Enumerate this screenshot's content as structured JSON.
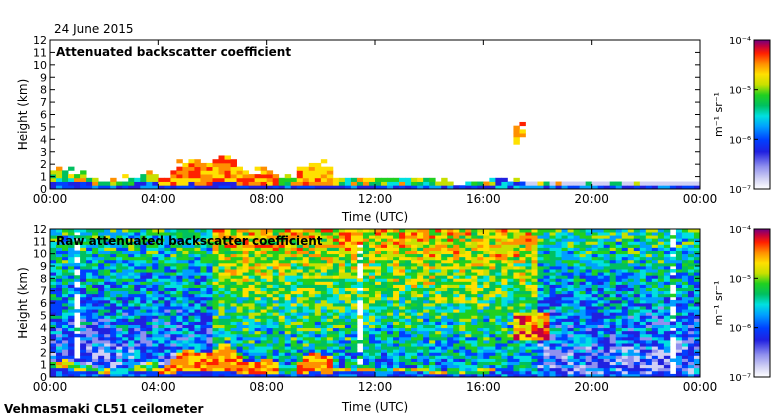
{
  "header": {
    "date": "24 June 2015"
  },
  "footer": {
    "instrument": "Vehmasmaki CL51 ceilometer"
  },
  "colormap": [
    "#ffffff",
    "#d0d0f4",
    "#9090ee",
    "#2020e0",
    "#0040ff",
    "#00a0ff",
    "#00e0e0",
    "#00c060",
    "#20d020",
    "#c8e000",
    "#ffe000",
    "#ff9000",
    "#ff2000",
    "#c00040",
    "#700080"
  ],
  "chart_data": [
    {
      "type": "heatmap",
      "title": "Attenuated backscatter coefficient",
      "xlabel": "Time (UTC)",
      "ylabel": "Height (km)",
      "x_ticks": [
        "00:00",
        "04:00",
        "08:00",
        "12:00",
        "16:00",
        "20:00",
        "00:00"
      ],
      "y_ticks": [
        "0",
        "1",
        "2",
        "3",
        "4",
        "5",
        "6",
        "7",
        "8",
        "9",
        "10",
        "11",
        "12"
      ],
      "xlim_hours": [
        0,
        24
      ],
      "ylim_km": [
        0,
        12
      ],
      "colorbar": {
        "label": "m⁻¹ sr⁻¹",
        "ticks": [
          "10⁻⁴",
          "10⁻⁵",
          "10⁻⁶",
          "10⁻⁷"
        ],
        "range_log10": [
          -7,
          -4
        ]
      }
    },
    {
      "type": "heatmap",
      "title": "Raw attenuated backscatter coefficient",
      "xlabel": "Time (UTC)",
      "ylabel": "Height (km)",
      "x_ticks": [
        "00:00",
        "04:00",
        "08:00",
        "12:00",
        "16:00",
        "20:00",
        "00:00"
      ],
      "y_ticks": [
        "0",
        "1",
        "2",
        "3",
        "4",
        "5",
        "6",
        "7",
        "8",
        "9",
        "10",
        "11",
        "12"
      ],
      "xlim_hours": [
        0,
        24
      ],
      "ylim_km": [
        0,
        12
      ],
      "colorbar": {
        "label": "m⁻¹ sr⁻¹",
        "ticks": [
          "10⁻⁴",
          "10⁻⁵",
          "10⁻⁶",
          "10⁻⁷"
        ],
        "range_log10": [
          -7,
          -4
        ]
      }
    }
  ]
}
